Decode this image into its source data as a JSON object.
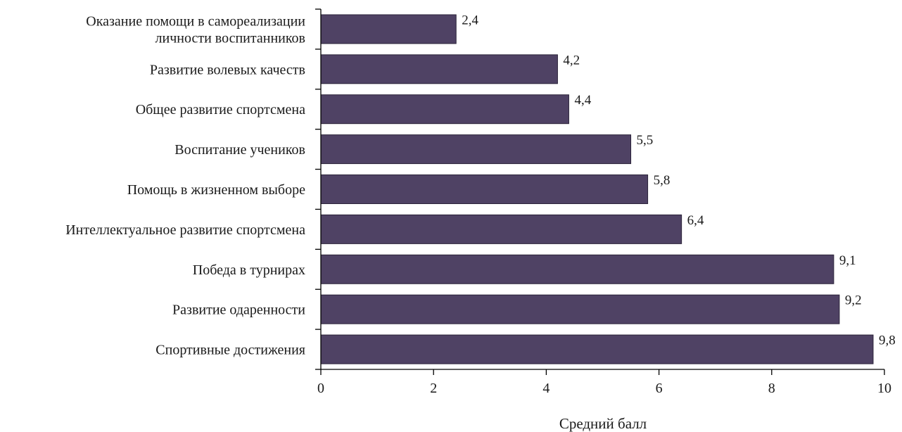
{
  "chart_data": {
    "type": "bar",
    "orientation": "horizontal",
    "categories": [
      [
        "Оказание помощи в самореализации",
        "личности воспитанников"
      ],
      [
        "Развитие волевых качеств"
      ],
      [
        "Общее развитие спортсмена"
      ],
      [
        "Воспитание учеников"
      ],
      [
        "Помощь в жизненном выборе"
      ],
      [
        "Интеллектуальное развитие спортсмена"
      ],
      [
        "Победа в турнирах"
      ],
      [
        "Развитие одаренности"
      ],
      [
        "Спортивные достижения"
      ]
    ],
    "values": [
      2.4,
      4.2,
      4.4,
      5.5,
      5.8,
      6.4,
      9.1,
      9.2,
      9.8
    ],
    "value_labels": [
      "2,4",
      "4,2",
      "4,4",
      "5,5",
      "5,8",
      "6,4",
      "9,1",
      "9,2",
      "9,8"
    ],
    "xlabel": "Средний балл",
    "ylabel": "",
    "title": "",
    "xlim": [
      0,
      10
    ],
    "xticks": [
      0,
      2,
      4,
      6,
      8,
      10
    ],
    "grid": false,
    "bar_color": "#4f4264"
  }
}
